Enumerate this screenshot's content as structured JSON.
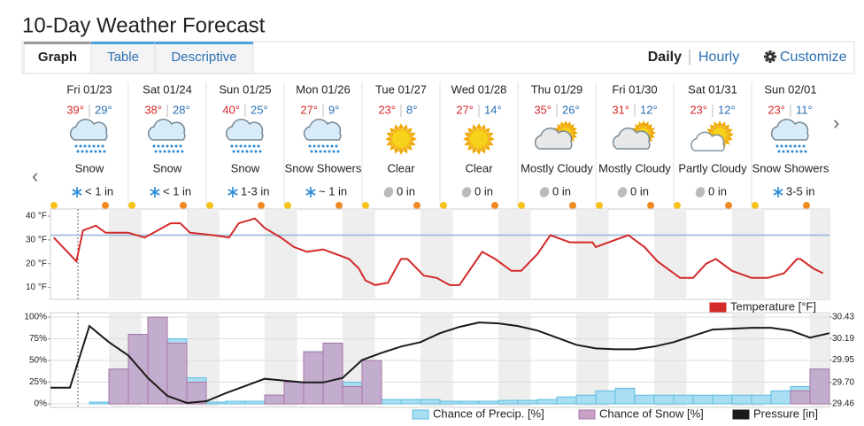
{
  "header": {
    "title": "10-Day Weather Forecast"
  },
  "tabs": [
    "Graph",
    "Table",
    "Descriptive"
  ],
  "active_tab": 0,
  "modes": [
    "Daily",
    "Hourly"
  ],
  "active_mode": 0,
  "customize": "Customize",
  "days": [
    {
      "date": "Fri 01/23",
      "high": "39°",
      "low": "29°",
      "icon": "snow",
      "condition": "Snow",
      "precip": "< 1 in"
    },
    {
      "date": "Sat 01/24",
      "high": "38°",
      "low": "28°",
      "icon": "snow",
      "condition": "Snow",
      "precip": "< 1 in"
    },
    {
      "date": "Sun 01/25",
      "high": "40°",
      "low": "25°",
      "icon": "snow",
      "condition": "Snow",
      "precip": "1-3 in"
    },
    {
      "date": "Mon 01/26",
      "high": "27°",
      "low": "9°",
      "icon": "snow",
      "condition": "Snow Showers",
      "precip": "~ 1 in"
    },
    {
      "date": "Tue 01/27",
      "high": "23°",
      "low": "8°",
      "icon": "clear",
      "condition": "Clear",
      "precip": "0 in"
    },
    {
      "date": "Wed 01/28",
      "high": "27°",
      "low": "14°",
      "icon": "clear",
      "condition": "Clear",
      "precip": "0 in"
    },
    {
      "date": "Thu 01/29",
      "high": "35°",
      "low": "26°",
      "icon": "mostly-cloudy",
      "condition": "Mostly Cloudy",
      "precip": "0 in"
    },
    {
      "date": "Fri 01/30",
      "high": "31°",
      "low": "12°",
      "icon": "mostly-cloudy",
      "condition": "Mostly Cloudy",
      "precip": "0 in"
    },
    {
      "date": "Sat 01/31",
      "high": "23°",
      "low": "12°",
      "icon": "partly-cloudy",
      "condition": "Partly Cloudy",
      "precip": "0 in"
    },
    {
      "date": "Sun 02/01",
      "high": "23°",
      "low": "11°",
      "icon": "snow",
      "condition": "Snow Showers",
      "precip": "3-5 in"
    }
  ],
  "chart_data": [
    {
      "type": "line",
      "x": [
        1,
        8,
        10,
        14,
        17,
        24,
        29,
        33,
        37,
        40,
        43,
        50,
        55,
        58,
        63,
        66,
        71,
        75,
        79,
        84,
        88,
        92,
        95,
        97,
        100,
        104,
        108,
        110,
        115,
        119,
        123,
        126,
        130,
        133,
        137,
        142,
        145,
        150,
        154,
        160,
        167,
        168,
        178,
        183,
        187,
        191,
        194,
        198,
        202,
        205,
        210,
        216,
        221,
        226,
        230,
        231,
        235,
        238
      ],
      "xlim": [
        0,
        240
      ],
      "series": [
        {
          "name": "Temperature [°F]",
          "color": "#d42a2a",
          "values": [
            31,
            21,
            34,
            36,
            33,
            33,
            31,
            34,
            37,
            37,
            33,
            32,
            31,
            37,
            39,
            35,
            31,
            27,
            25,
            26,
            24,
            22,
            18,
            13,
            11,
            12,
            22,
            22,
            15,
            14,
            11,
            11,
            19,
            25,
            22,
            17,
            17,
            24,
            32,
            29,
            29,
            27,
            32,
            27,
            21,
            17,
            14,
            14,
            20,
            22,
            17,
            14,
            14,
            16,
            22,
            22,
            18,
            16
          ]
        }
      ],
      "ylim": [
        5,
        43
      ],
      "yticks": [
        {
          "value": 10,
          "label": "10 °F"
        },
        {
          "value": 20,
          "label": "20 °F"
        },
        {
          "value": 30,
          "label": "30 °F"
        },
        {
          "value": 40,
          "label": "40 °F"
        }
      ],
      "reference_line": 32,
      "reference_color": "#8fb4dc"
    },
    {
      "type": "area",
      "x": [
        0,
        6,
        12,
        18,
        24,
        30,
        36,
        42,
        48,
        54,
        60,
        66,
        72,
        78,
        84,
        90,
        96,
        102,
        108,
        114,
        120,
        126,
        132,
        138,
        144,
        150,
        156,
        162,
        168,
        174,
        180,
        186,
        192,
        198,
        204,
        210,
        216,
        222,
        228,
        234,
        240
      ],
      "xlim": [
        0,
        240
      ],
      "step": true,
      "series": [
        {
          "name": "Chance of Precip. [%]",
          "type": "area",
          "color": "#a9def2",
          "stroke": "#5bbde0",
          "values": [
            0,
            0,
            2,
            40,
            80,
            100,
            75,
            30,
            2,
            3,
            3,
            10,
            25,
            60,
            70,
            25,
            50,
            5,
            5,
            5,
            3,
            3,
            3,
            4,
            4,
            5,
            8,
            10,
            15,
            18,
            10,
            10,
            10,
            10,
            10,
            10,
            10,
            15,
            20,
            40,
            55
          ]
        },
        {
          "name": "Chance of Snow [%]",
          "type": "area",
          "color": "#c9a0c6",
          "stroke": "#a875a5",
          "values": [
            0,
            0,
            0,
            40,
            80,
            100,
            70,
            25,
            0,
            0,
            0,
            10,
            25,
            60,
            70,
            20,
            50,
            0,
            0,
            0,
            0,
            0,
            0,
            0,
            0,
            0,
            0,
            0,
            0,
            0,
            0,
            0,
            0,
            0,
            0,
            0,
            0,
            0,
            15,
            40,
            55
          ]
        },
        {
          "name": "Pressure [in]",
          "type": "line",
          "axis": "y2",
          "color": "#1a1a1a",
          "values": [
            29.64,
            29.64,
            30.33,
            30.15,
            30.0,
            29.75,
            29.55,
            29.47,
            29.49,
            29.58,
            29.66,
            29.74,
            29.72,
            29.7,
            29.7,
            29.75,
            29.95,
            30.03,
            30.1,
            30.15,
            30.25,
            30.32,
            30.37,
            30.36,
            30.33,
            30.28,
            30.2,
            30.12,
            30.08,
            30.07,
            30.07,
            30.1,
            30.15,
            30.22,
            30.29,
            30.3,
            30.31,
            30.31,
            30.28,
            30.2,
            30.25
          ]
        }
      ],
      "ylim": [
        0,
        100
      ],
      "yticks": [
        {
          "value": 0,
          "label": "0%"
        },
        {
          "value": 25,
          "label": "25%"
        },
        {
          "value": 50,
          "label": "50%"
        },
        {
          "value": 75,
          "label": "75%"
        },
        {
          "value": 100,
          "label": "100%"
        }
      ],
      "y2lim": [
        29.46,
        30.43
      ],
      "y2ticks": [
        29.46,
        {
          "value": 29.7,
          "label": "29.70"
        },
        29.95,
        30.19,
        30.43
      ],
      "grid": true
    }
  ]
}
